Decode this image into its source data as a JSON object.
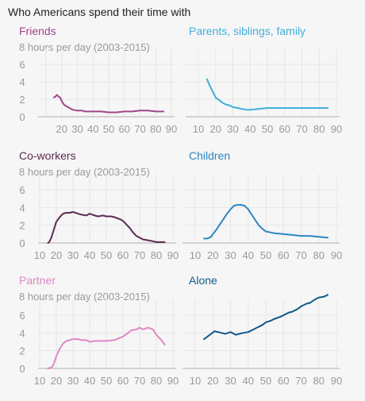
{
  "chart_data": {
    "type": "line",
    "title": "Who Americans spend their time with",
    "ylabel": "8 hours per day (2003-2015)",
    "yticks": [
      0,
      2,
      4,
      6
    ],
    "xticks": [
      10,
      20,
      30,
      40,
      50,
      60,
      70,
      80,
      90
    ],
    "xlim": [
      10,
      90
    ],
    "ylim": [
      0,
      8
    ],
    "grid": true,
    "panels": [
      {
        "name": "Friends",
        "color": "#a0468a",
        "x": [
          15,
          16,
          17,
          18,
          19,
          20,
          21,
          22,
          23,
          25,
          27,
          30,
          33,
          35,
          38,
          40,
          45,
          50,
          55,
          60,
          65,
          70,
          75,
          80,
          85
        ],
        "y": [
          2.2,
          2.3,
          2.5,
          2.3,
          2.2,
          1.8,
          1.5,
          1.3,
          1.2,
          1.0,
          0.8,
          0.7,
          0.7,
          0.6,
          0.6,
          0.6,
          0.6,
          0.5,
          0.5,
          0.6,
          0.6,
          0.7,
          0.7,
          0.6,
          0.6
        ]
      },
      {
        "name": "Parents, siblings, family",
        "color": "#41afdb",
        "x": [
          15,
          16,
          17,
          18,
          19,
          20,
          22,
          24,
          26,
          28,
          30,
          33,
          35,
          38,
          40,
          45,
          50,
          55,
          60,
          65,
          70,
          75,
          80,
          85
        ],
        "y": [
          4.3,
          3.8,
          3.4,
          3.0,
          2.6,
          2.2,
          1.9,
          1.6,
          1.4,
          1.3,
          1.1,
          1.0,
          0.9,
          0.8,
          0.8,
          0.9,
          1.0,
          1.0,
          1.0,
          1.0,
          1.0,
          1.0,
          1.0,
          1.0
        ]
      },
      {
        "name": "Co-workers",
        "color": "#5b2a51",
        "x": [
          15,
          16,
          17,
          18,
          19,
          20,
          22,
          24,
          26,
          28,
          30,
          33,
          35,
          38,
          40,
          43,
          45,
          48,
          50,
          53,
          55,
          58,
          60,
          62,
          64,
          66,
          68,
          70,
          72,
          75,
          78,
          80,
          85
        ],
        "y": [
          0,
          0.2,
          0.6,
          1.2,
          1.8,
          2.4,
          2.9,
          3.3,
          3.4,
          3.4,
          3.5,
          3.3,
          3.2,
          3.1,
          3.3,
          3.1,
          3.0,
          3.1,
          3.0,
          3.0,
          2.9,
          2.7,
          2.5,
          2.1,
          1.7,
          1.2,
          0.8,
          0.6,
          0.4,
          0.3,
          0.2,
          0.1,
          0.1
        ]
      },
      {
        "name": "Children",
        "color": "#2a87c2",
        "x": [
          15,
          17,
          19,
          20,
          22,
          24,
          26,
          28,
          30,
          32,
          34,
          36,
          38,
          40,
          42,
          44,
          46,
          48,
          50,
          55,
          60,
          65,
          70,
          75,
          80,
          85
        ],
        "y": [
          0.5,
          0.5,
          0.7,
          1.0,
          1.5,
          2.1,
          2.7,
          3.3,
          3.8,
          4.2,
          4.3,
          4.3,
          4.2,
          3.8,
          3.2,
          2.6,
          2.0,
          1.6,
          1.3,
          1.1,
          1.0,
          0.9,
          0.8,
          0.8,
          0.7,
          0.6
        ]
      },
      {
        "name": "Partner",
        "color": "#dd88c4",
        "x": [
          15,
          17,
          18,
          19,
          20,
          22,
          24,
          26,
          28,
          30,
          33,
          35,
          38,
          40,
          43,
          45,
          50,
          55,
          60,
          63,
          65,
          68,
          70,
          72,
          75,
          78,
          80,
          83,
          85
        ],
        "y": [
          0,
          0.1,
          0.3,
          0.8,
          1.4,
          2.2,
          2.8,
          3.1,
          3.2,
          3.3,
          3.3,
          3.2,
          3.2,
          3.0,
          3.1,
          3.1,
          3.1,
          3.2,
          3.6,
          4.0,
          4.3,
          4.4,
          4.6,
          4.4,
          4.6,
          4.4,
          3.8,
          3.2,
          2.7
        ]
      },
      {
        "name": "Alone",
        "color": "#0f5a87",
        "x": [
          15,
          17,
          19,
          21,
          23,
          25,
          27,
          30,
          33,
          35,
          37,
          40,
          43,
          45,
          48,
          50,
          53,
          55,
          58,
          60,
          63,
          65,
          68,
          70,
          73,
          75,
          78,
          80,
          83,
          85
        ],
        "y": [
          3.3,
          3.6,
          3.9,
          4.2,
          4.1,
          4.0,
          3.9,
          4.1,
          3.8,
          3.9,
          4.0,
          4.1,
          4.4,
          4.6,
          4.9,
          5.2,
          5.4,
          5.6,
          5.8,
          6.0,
          6.3,
          6.4,
          6.7,
          7.0,
          7.3,
          7.4,
          7.8,
          8.0,
          8.1,
          8.3
        ]
      }
    ]
  }
}
